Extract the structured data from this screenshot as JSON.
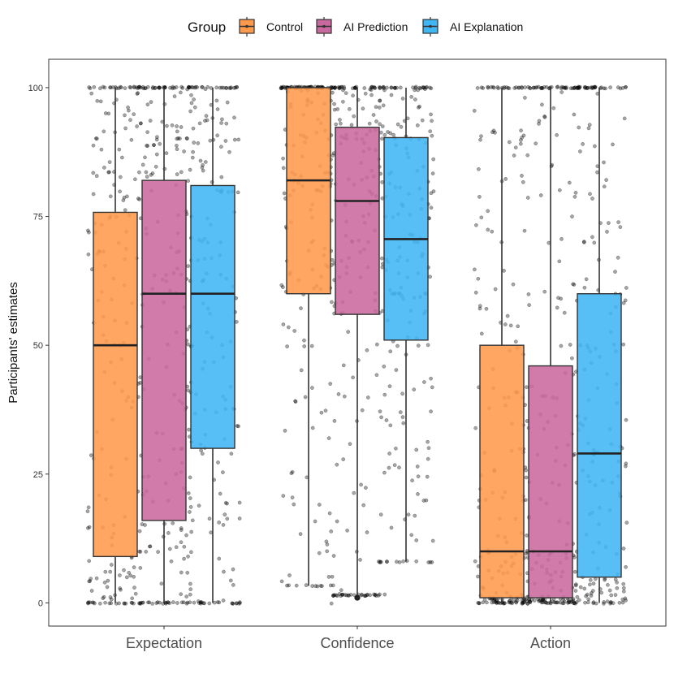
{
  "chart_data": {
    "type": "boxplot",
    "ylabel": "Participants' estimates",
    "xlabel": "",
    "ylim": [
      -4.5,
      105.5
    ],
    "yticks": [
      0,
      25,
      50,
      75,
      100
    ],
    "categories": [
      "Expectation",
      "Confidence",
      "Action"
    ],
    "legend": {
      "title": "Group",
      "position": "top"
    },
    "grid": false,
    "series": [
      {
        "name": "Control",
        "color": "#ff9a4d",
        "boxes": [
          {
            "category": "Expectation",
            "whisker_low": 0,
            "q1": 9,
            "median": 50,
            "q3": 75.8,
            "whisker_high": 100
          },
          {
            "category": "Confidence",
            "whisker_low": 3.3,
            "q1": 60,
            "median": 82,
            "q3": 100,
            "whisker_high": 100
          },
          {
            "category": "Action",
            "whisker_low": 0,
            "q1": 1,
            "median": 10,
            "q3": 50,
            "whisker_high": 100
          }
        ]
      },
      {
        "name": "AI Prediction",
        "color": "#c9699e",
        "boxes": [
          {
            "category": "Expectation",
            "whisker_low": 0,
            "q1": 16,
            "median": 60,
            "q3": 82,
            "whisker_high": 100
          },
          {
            "category": "Confidence",
            "whisker_low": 1.5,
            "q1": 56,
            "median": 78,
            "q3": 92.3,
            "whisker_high": 100,
            "outliers": [
              1
            ]
          },
          {
            "category": "Action",
            "whisker_low": 0,
            "q1": 1,
            "median": 10,
            "q3": 46,
            "whisker_high": 100
          }
        ]
      },
      {
        "name": "AI Explanation",
        "color": "#41b6f5",
        "boxes": [
          {
            "category": "Expectation",
            "whisker_low": 0,
            "q1": 30,
            "median": 60,
            "q3": 81,
            "whisker_high": 100
          },
          {
            "category": "Confidence",
            "whisker_low": 8,
            "q1": 51,
            "median": 70.6,
            "q3": 90.3,
            "whisker_high": 100
          },
          {
            "category": "Action",
            "whisker_low": 0,
            "q1": 5,
            "median": 29,
            "q3": 60,
            "whisker_high": 100
          }
        ]
      }
    ],
    "points": "individual participant estimates jittered over each box (semi-transparent black dots)"
  }
}
